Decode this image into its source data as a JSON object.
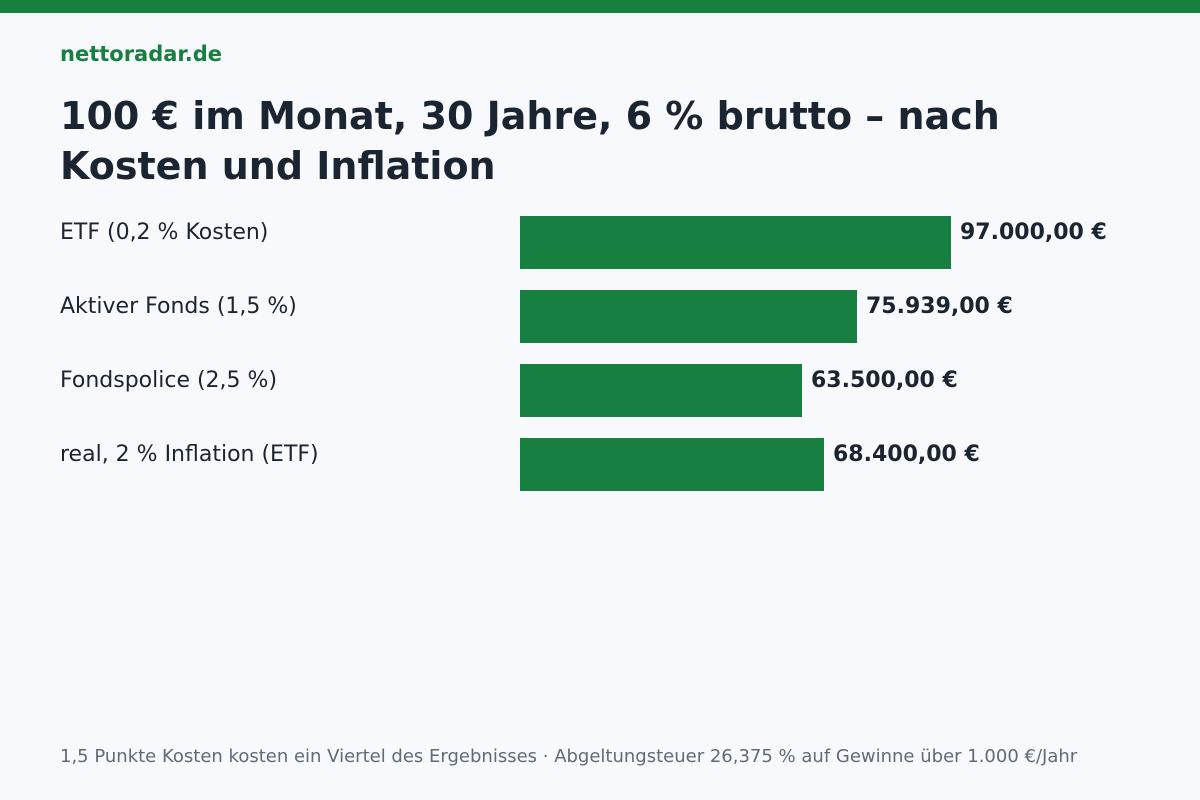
{
  "header": {
    "brand": "nettoradar.de",
    "title": "100 € im Monat, 30 Jahre, 6 % brutto – nach Kosten und Inflation"
  },
  "colors": {
    "accent": "#178040",
    "background": "#f7f9fc",
    "text": "#1b2431",
    "muted": "#5f6b7a"
  },
  "chart_data": {
    "type": "bar",
    "orientation": "horizontal",
    "title": "100 € im Monat, 30 Jahre, 6 % brutto – nach Kosten und Inflation",
    "categories": [
      "ETF (0,2 % Kosten)",
      "Aktiver Fonds (1,5 %)",
      "Fondspolice (2,5 %)",
      "real, 2 % Inflation (ETF)"
    ],
    "values": [
      97000,
      75939,
      63500,
      68400
    ],
    "value_labels": [
      "97.000,00 €",
      "75.939,00 €",
      "63.500,00 €",
      "68.400,00 €"
    ],
    "xlim": [
      0,
      97000
    ],
    "grid": false,
    "legend": "none"
  },
  "footnote": "1,5 Punkte Kosten kosten ein Viertel des Ergebnisses · Abgeltungsteuer 26,375 % auf Gewinne über 1.000 €/Jahr"
}
